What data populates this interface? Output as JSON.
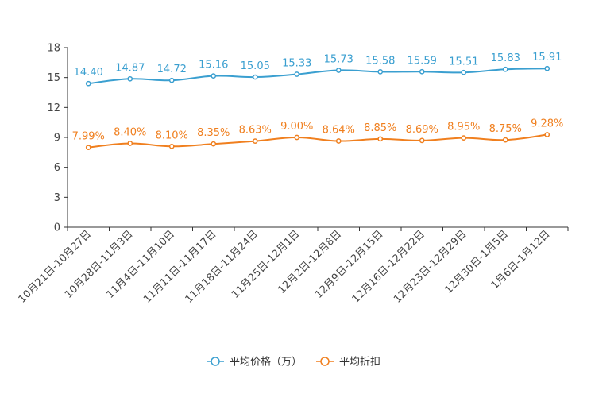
{
  "chart_data": {
    "type": "line",
    "categories": [
      "10月21日-10月27日",
      "10月28日-11月3日",
      "11月4日-11月10日",
      "11月11日-11月17日",
      "11月18日-11月24日",
      "11月25日-12月1日",
      "12月2日-12月8日",
      "12月9日-12月15日",
      "12月16日-12月22日",
      "12月23日-12月29日",
      "12月30日-1月5日",
      "1月6日-1月12日"
    ],
    "ylim": [
      0,
      18
    ],
    "yticks": [
      0,
      3,
      6,
      9,
      12,
      15,
      18
    ],
    "series": [
      {
        "name": "平均价格（万）",
        "color": "#3a9fd0",
        "values": [
          14.4,
          14.87,
          14.72,
          15.16,
          15.05,
          15.33,
          15.73,
          15.58,
          15.59,
          15.51,
          15.83,
          15.91
        ],
        "labels": [
          "14.40",
          "14.87",
          "14.72",
          "15.16",
          "15.05",
          "15.33",
          "15.73",
          "15.58",
          "15.59",
          "15.51",
          "15.83",
          "15.91"
        ]
      },
      {
        "name": "平均折扣",
        "color": "#f07f1e",
        "values": [
          7.99,
          8.4,
          8.1,
          8.35,
          8.63,
          9.0,
          8.64,
          8.85,
          8.69,
          8.95,
          8.75,
          9.28
        ],
        "labels": [
          "7.99%",
          "8.40%",
          "8.10%",
          "8.35%",
          "8.63%",
          "9.00%",
          "8.64%",
          "8.85%",
          "8.69%",
          "8.95%",
          "8.75%",
          "9.28%"
        ]
      }
    ],
    "legend": "bottom-center"
  }
}
